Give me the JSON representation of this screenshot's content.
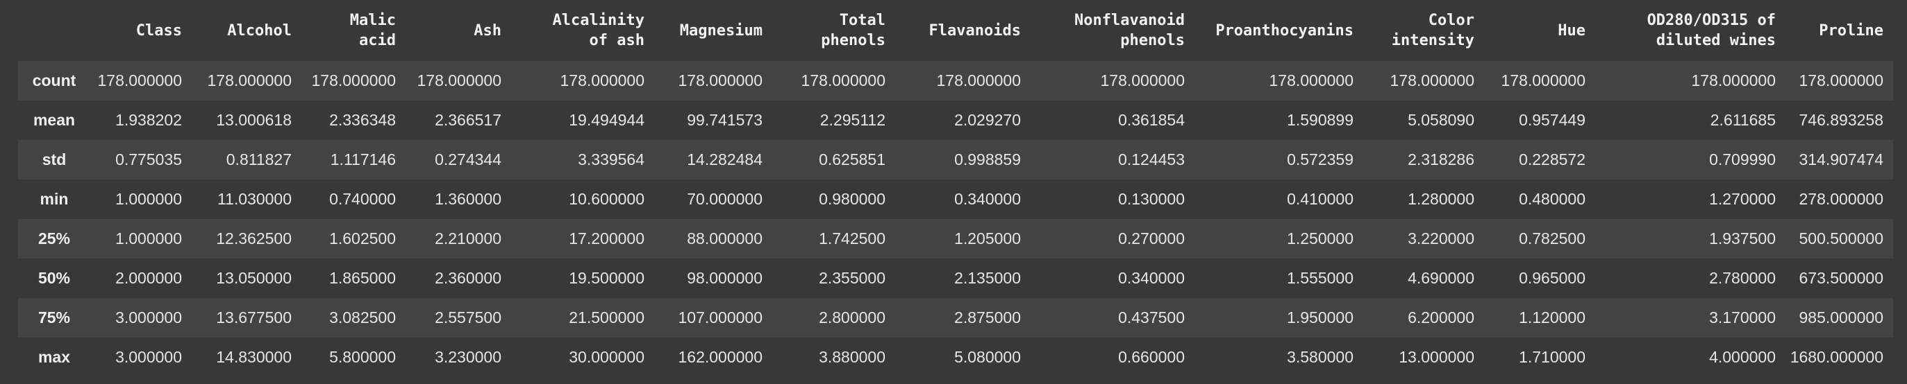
{
  "table": {
    "columns": [
      "",
      "Class",
      "Alcohol",
      "Malic\nacid",
      "Ash",
      "Alcalinity\nof ash",
      "Magnesium",
      "Total\nphenols",
      "Flavanoids",
      "Nonflavanoid\nphenols",
      "Proanthocyanins",
      "Color\nintensity",
      "Hue",
      "OD280/OD315 of\ndiluted wines",
      "Proline"
    ],
    "rows": [
      {
        "label": "count",
        "values": [
          "178.000000",
          "178.000000",
          "178.000000",
          "178.000000",
          "178.000000",
          "178.000000",
          "178.000000",
          "178.000000",
          "178.000000",
          "178.000000",
          "178.000000",
          "178.000000",
          "178.000000",
          "178.000000"
        ]
      },
      {
        "label": "mean",
        "values": [
          "1.938202",
          "13.000618",
          "2.336348",
          "2.366517",
          "19.494944",
          "99.741573",
          "2.295112",
          "2.029270",
          "0.361854",
          "1.590899",
          "5.058090",
          "0.957449",
          "2.611685",
          "746.893258"
        ]
      },
      {
        "label": "std",
        "values": [
          "0.775035",
          "0.811827",
          "1.117146",
          "0.274344",
          "3.339564",
          "14.282484",
          "0.625851",
          "0.998859",
          "0.124453",
          "0.572359",
          "2.318286",
          "0.228572",
          "0.709990",
          "314.907474"
        ]
      },
      {
        "label": "min",
        "values": [
          "1.000000",
          "11.030000",
          "0.740000",
          "1.360000",
          "10.600000",
          "70.000000",
          "0.980000",
          "0.340000",
          "0.130000",
          "0.410000",
          "1.280000",
          "0.480000",
          "1.270000",
          "278.000000"
        ]
      },
      {
        "label": "25%",
        "values": [
          "1.000000",
          "12.362500",
          "1.602500",
          "2.210000",
          "17.200000",
          "88.000000",
          "1.742500",
          "1.205000",
          "0.270000",
          "1.250000",
          "3.220000",
          "0.782500",
          "1.937500",
          "500.500000"
        ]
      },
      {
        "label": "50%",
        "values": [
          "2.000000",
          "13.050000",
          "1.865000",
          "2.360000",
          "19.500000",
          "98.000000",
          "2.355000",
          "2.135000",
          "0.340000",
          "1.555000",
          "4.690000",
          "0.965000",
          "2.780000",
          "673.500000"
        ]
      },
      {
        "label": "75%",
        "values": [
          "3.000000",
          "13.677500",
          "3.082500",
          "2.557500",
          "21.500000",
          "107.000000",
          "2.800000",
          "2.875000",
          "0.437500",
          "1.950000",
          "6.200000",
          "1.120000",
          "3.170000",
          "985.000000"
        ]
      },
      {
        "label": "max",
        "values": [
          "3.000000",
          "14.830000",
          "5.800000",
          "3.230000",
          "30.000000",
          "162.000000",
          "3.880000",
          "5.080000",
          "0.660000",
          "3.580000",
          "13.000000",
          "1.710000",
          "4.000000",
          "1680.000000"
        ]
      }
    ]
  }
}
